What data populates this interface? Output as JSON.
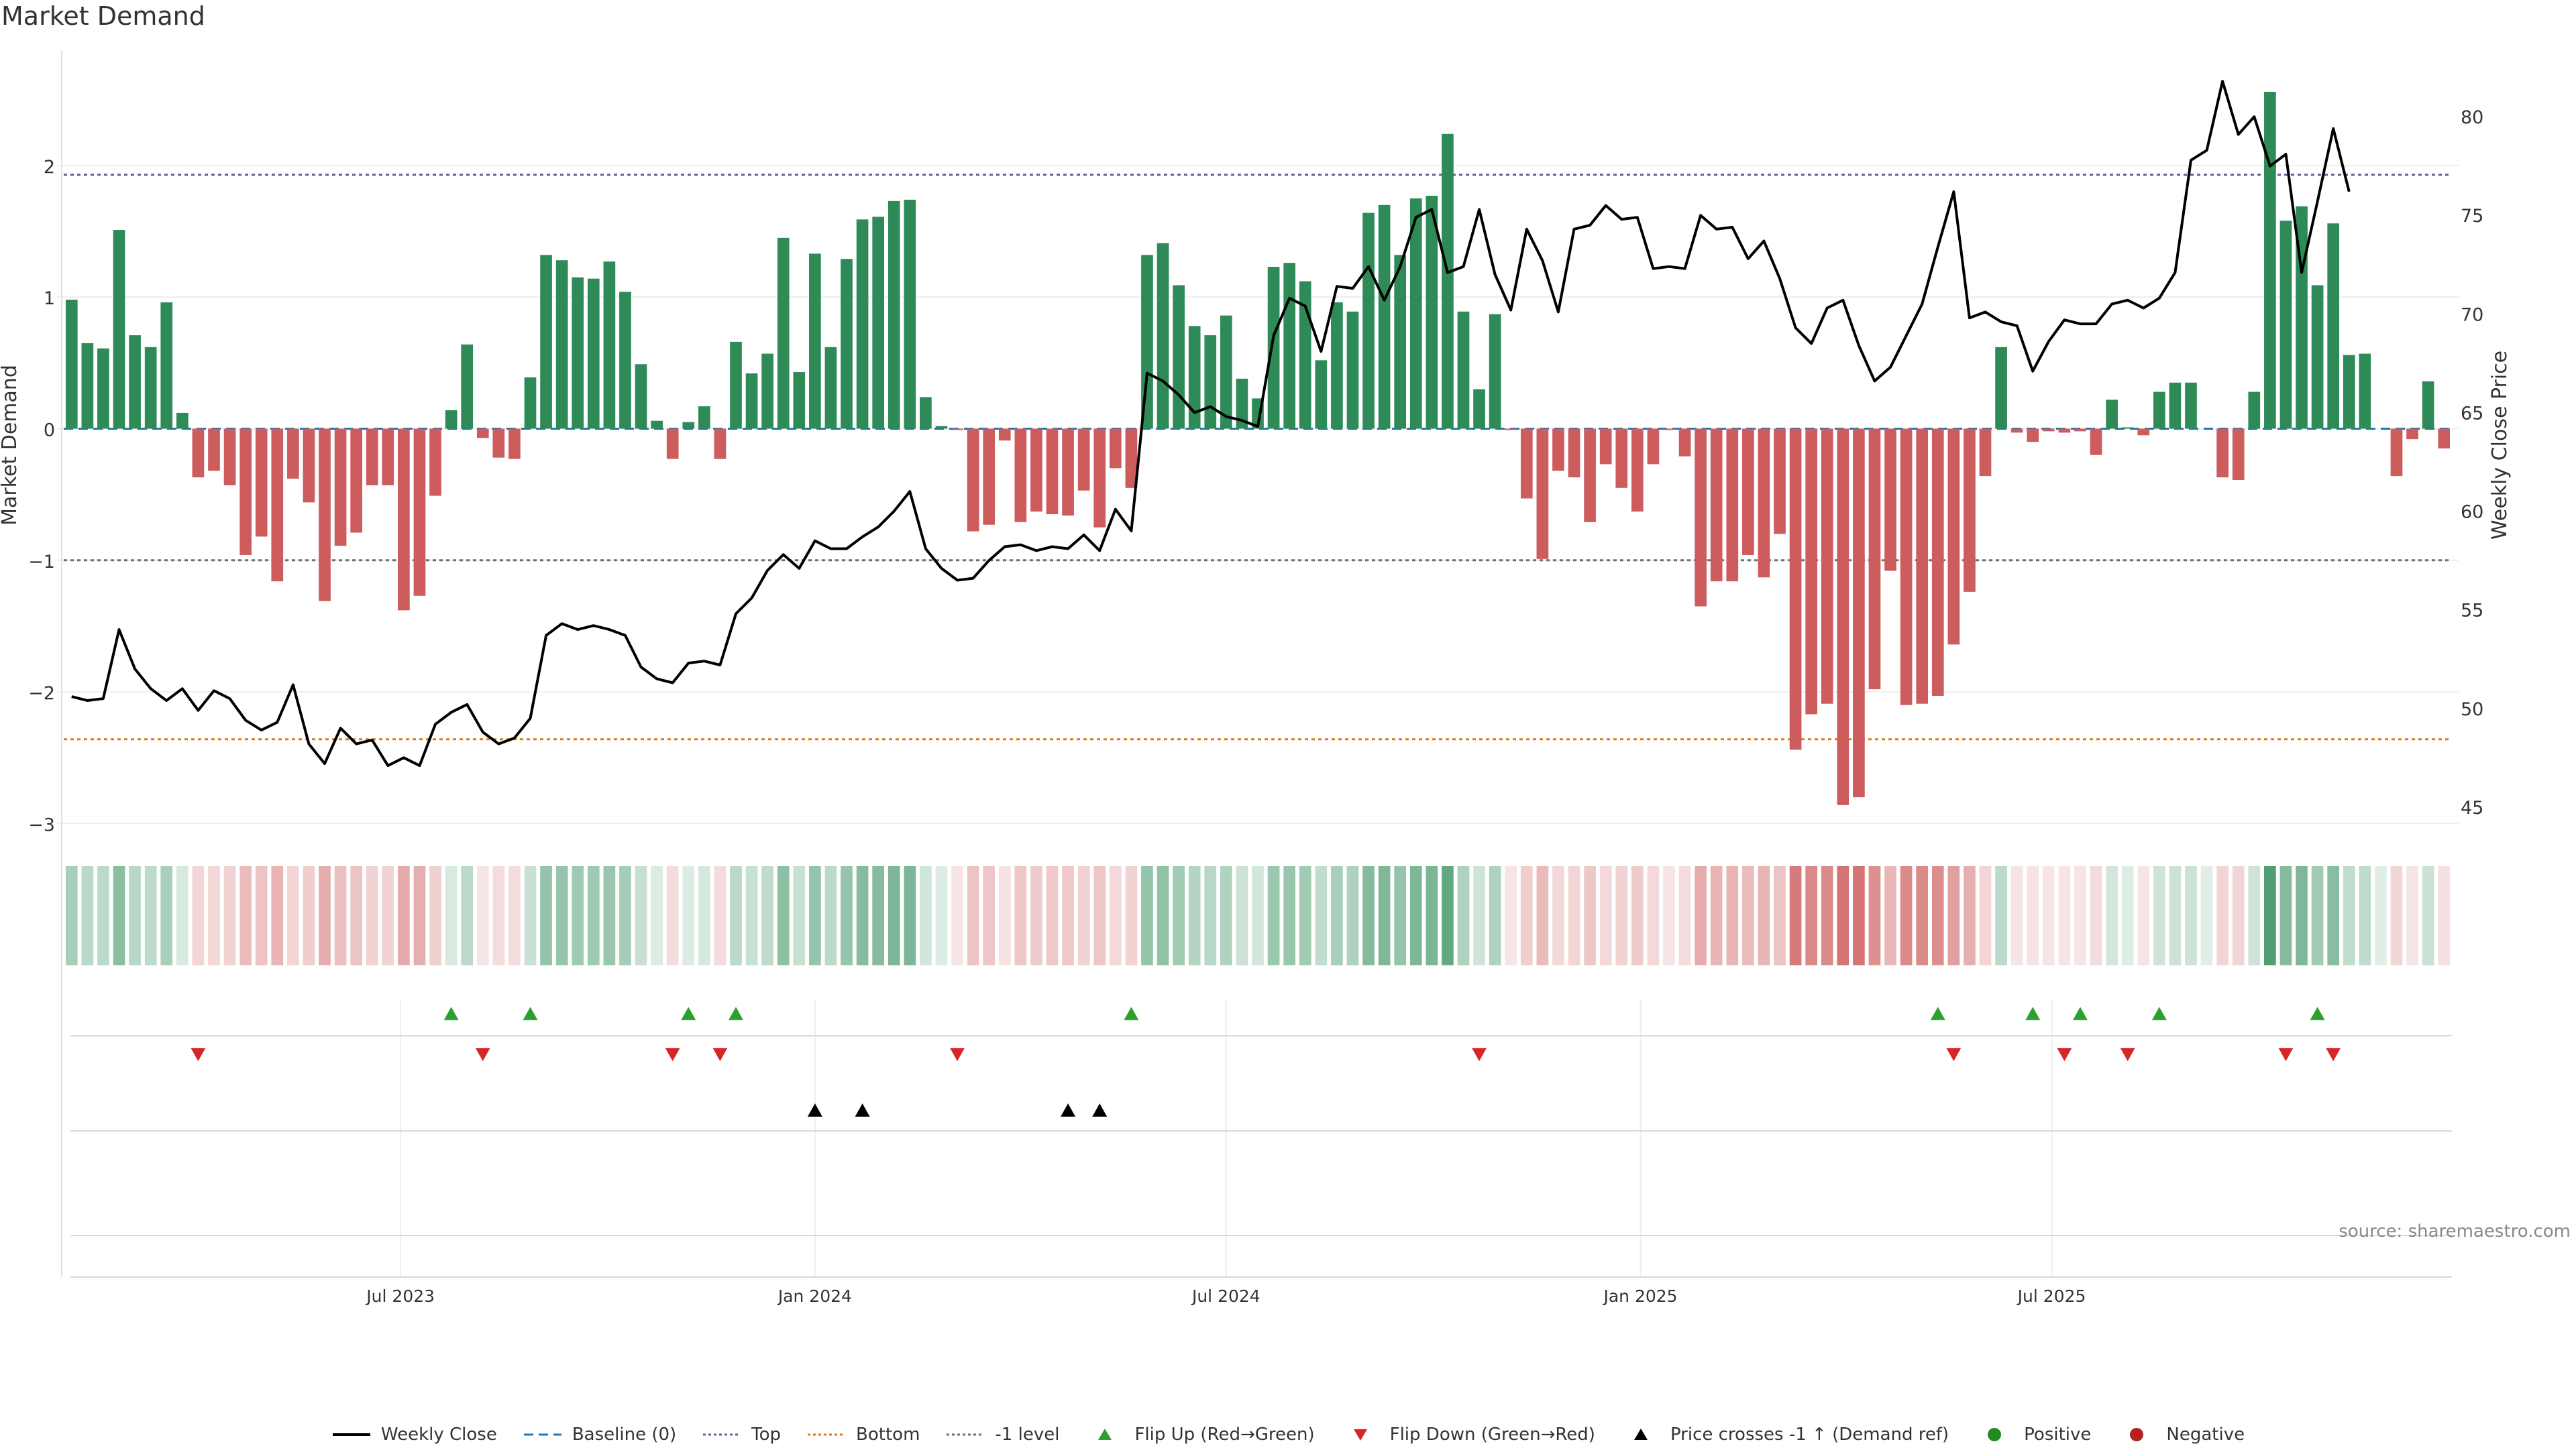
{
  "title": "Market Demand",
  "source": "source: sharemaestro.com",
  "colors": {
    "positive": "#2e8b57",
    "negative": "#cd5c5c",
    "price": "#000000",
    "baseline": "#1f77b4",
    "top": "#6b5b95",
    "bottom": "#e07b14",
    "minus1": "#6e6e6e",
    "flip_up": "#2ca02c",
    "flip_down": "#d62728",
    "cross": "#000000",
    "dot_positive": "#228b22",
    "dot_negative": "#b22222"
  },
  "chart_data": {
    "type": "bar+line",
    "title": "Market Demand",
    "ylabel_left": "Market Demand",
    "ylabel_right": "Weekly Close Price",
    "ylim_left": [
      -3.1,
      2.85
    ],
    "ylim_right": [
      43.5,
      83.2
    ],
    "yticks_left": [
      "2",
      "1",
      "0",
      "−1",
      "−2",
      "−3"
    ],
    "yticks_left_values": [
      2,
      1,
      0,
      -1,
      -2,
      -3
    ],
    "yticks_right": [
      "80",
      "75",
      "70",
      "65",
      "60",
      "55",
      "50",
      "45"
    ],
    "yticks_right_values": [
      80,
      75,
      70,
      65,
      60,
      55,
      50,
      45
    ],
    "xticks": [
      "Jul 2023",
      "Jan 2024",
      "Jul 2024",
      "Jan 2025",
      "Jul 2025"
    ],
    "xticks_week_index": [
      21.3,
      47.5,
      73.5,
      99.7,
      125.7
    ],
    "top_level": 1.93,
    "bottom_level": -2.36,
    "minus1_level": -1.0,
    "demand": [
      0.98,
      0.65,
      0.61,
      1.51,
      0.71,
      0.62,
      0.96,
      0.12,
      -0.37,
      -0.32,
      -0.43,
      -0.96,
      -0.82,
      -1.16,
      -0.38,
      -0.56,
      -1.31,
      -0.89,
      -0.79,
      -0.43,
      -0.43,
      -1.38,
      -1.27,
      -0.51,
      0.14,
      0.64,
      -0.07,
      -0.22,
      -0.23,
      0.39,
      1.32,
      1.28,
      1.15,
      1.14,
      1.27,
      1.04,
      0.49,
      0.06,
      -0.23,
      0.05,
      0.17,
      -0.23,
      0.66,
      0.42,
      0.57,
      1.45,
      0.43,
      1.33,
      0.62,
      1.29,
      1.59,
      1.61,
      1.73,
      1.74,
      0.24,
      0.02,
      -0.01,
      -0.78,
      -0.73,
      -0.09,
      -0.71,
      -0.63,
      -0.65,
      -0.66,
      -0.47,
      -0.75,
      -0.3,
      -0.45,
      1.32,
      1.41,
      1.09,
      0.78,
      0.71,
      0.86,
      0.38,
      0.23,
      1.23,
      1.26,
      1.12,
      0.52,
      0.96,
      0.89,
      1.64,
      1.7,
      1.32,
      1.75,
      1.77,
      2.24,
      0.89,
      0.3,
      0.87,
      -0.01,
      -0.53,
      -0.99,
      -0.32,
      -0.37,
      -0.71,
      -0.27,
      -0.45,
      -0.63,
      -0.27,
      -0.01,
      -0.21,
      -1.35,
      -1.16,
      -1.16,
      -0.96,
      -1.13,
      -0.8,
      -2.44,
      -2.17,
      -2.09,
      -2.86,
      -2.8,
      -1.98,
      -1.08,
      -2.1,
      -2.09,
      -2.03,
      -1.64,
      -1.24,
      -0.36,
      0.62,
      -0.03,
      -0.1,
      -0.02,
      -0.03,
      -0.02,
      -0.2,
      0.22,
      0.01,
      -0.05,
      0.28,
      0.35,
      0.35,
      0.0,
      -0.37,
      -0.39,
      0.28,
      2.56,
      1.58,
      1.69,
      1.09,
      1.56,
      0.56,
      0.57,
      0.0,
      -0.36,
      -0.08,
      0.36,
      -0.15
    ],
    "close": [
      50.6,
      50.4,
      50.5,
      54.0,
      52.0,
      51.0,
      50.4,
      51.0,
      49.9,
      50.9,
      50.5,
      49.4,
      48.9,
      49.3,
      51.2,
      48.2,
      47.2,
      49.0,
      48.2,
      48.4,
      47.1,
      47.5,
      47.1,
      49.2,
      49.8,
      50.2,
      48.8,
      48.2,
      48.5,
      49.5,
      53.7,
      54.3,
      54.0,
      54.2,
      54.0,
      53.7,
      52.1,
      51.5,
      51.3,
      52.3,
      52.4,
      52.2,
      54.8,
      55.6,
      57.0,
      57.8,
      57.1,
      58.5,
      58.1,
      58.1,
      58.7,
      59.2,
      60.0,
      61.0,
      58.1,
      57.1,
      56.5,
      56.6,
      57.5,
      58.2,
      58.3,
      58.0,
      58.2,
      58.1,
      58.8,
      58.0,
      60.1,
      59.0,
      67.0,
      66.6,
      65.9,
      65.0,
      65.3,
      64.8,
      64.6,
      64.3,
      68.9,
      70.8,
      70.4,
      68.1,
      71.4,
      71.3,
      72.4,
      70.7,
      72.4,
      74.9,
      75.3,
      72.1,
      72.4,
      75.3,
      72.0,
      70.2,
      74.3,
      72.7,
      70.1,
      74.3,
      74.5,
      75.5,
      74.8,
      74.9,
      72.3,
      72.4,
      72.3,
      75.0,
      74.3,
      74.4,
      72.8,
      73.7,
      71.8,
      69.3,
      68.5,
      70.3,
      70.7,
      68.4,
      66.6,
      67.3,
      68.9,
      70.5,
      73.4,
      76.2,
      69.8,
      70.1,
      69.6,
      69.4,
      67.1,
      68.6,
      69.7,
      69.5,
      69.5,
      70.5,
      70.7,
      70.3,
      70.8,
      72.1,
      77.8,
      78.3,
      81.8,
      79.1,
      80.0,
      77.5,
      78.1,
      72.1,
      75.7,
      79.4,
      76.2
    ],
    "heat_strip": "same values as demand, drawn as color intensity",
    "flip_up_weeks": [
      24,
      29,
      39,
      42,
      67,
      118,
      124,
      127,
      132,
      142
    ],
    "flip_down_weeks": [
      8,
      26,
      38,
      41,
      56,
      89,
      119,
      126,
      130,
      140,
      143
    ],
    "price_cross_weeks": [
      47,
      50,
      63,
      65
    ],
    "legend": [
      {
        "label": "Weekly Close",
        "kind": "line-solid",
        "color_key": "price"
      },
      {
        "label": "Baseline (0)",
        "kind": "line-dashed",
        "color_key": "baseline"
      },
      {
        "label": "Top",
        "kind": "line-dotted",
        "color_key": "top"
      },
      {
        "label": "Bottom",
        "kind": "line-dotted",
        "color_key": "bottom"
      },
      {
        "label": "-1 level",
        "kind": "line-dotted",
        "color_key": "minus1"
      },
      {
        "label": "Flip Up (Red→Green)",
        "kind": "tri-up",
        "color_key": "flip_up"
      },
      {
        "label": "Flip Down (Green→Red)",
        "kind": "tri-down",
        "color_key": "flip_down"
      },
      {
        "label": "Price crosses -1 ↑ (Demand ref)",
        "kind": "tri-up",
        "color_key": "cross"
      },
      {
        "label": "Positive",
        "kind": "dot",
        "color_key": "dot_positive"
      },
      {
        "label": "Negative",
        "kind": "dot",
        "color_key": "dot_negative"
      }
    ]
  }
}
